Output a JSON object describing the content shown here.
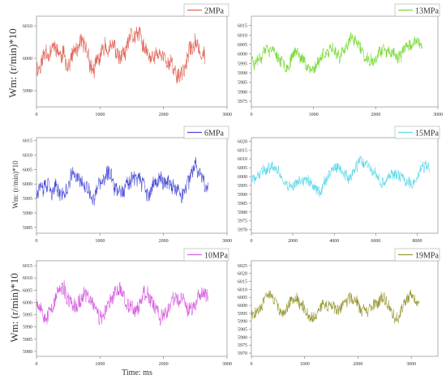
{
  "figure": {
    "ylabel_top": "Wm: (r/min)*10",
    "ylabel_mid": "Wm: (r/min)*10",
    "ylabel_bot": "Wm: (r/min)*10",
    "xlabel": "Time: ms"
  },
  "chart_data": [
    {
      "type": "line",
      "legend": "2MPa",
      "color": "#e06a5c",
      "xlim": [
        0,
        3000
      ],
      "ylim": [
        5985,
        6013
      ],
      "xticks": [
        "0",
        "1000",
        "2000",
        "3000"
      ],
      "yticks": [
        "5990",
        "6000",
        "6010"
      ],
      "ytick_values": [
        5990,
        6000,
        6010
      ],
      "x_end": 2650,
      "base": 6000,
      "amp": 4.5,
      "noise": 2.5,
      "seed": 11
    },
    {
      "type": "line",
      "legend": "13MPa",
      "color": "#7ddb3c",
      "xlim": [
        0,
        3000
      ],
      "ylim": [
        5972,
        6020
      ],
      "xticks": [
        "0",
        "1000",
        "2000",
        "3000"
      ],
      "yticks": [
        "5975",
        "5980",
        "5985",
        "5990",
        "5995",
        "6000",
        "6005",
        "6010",
        "6015"
      ],
      "ytick_values": [
        5975,
        5980,
        5985,
        5990,
        5995,
        6000,
        6005,
        6010,
        6015
      ],
      "x_end": 2750,
      "base": 6000,
      "amp": 6,
      "noise": 3,
      "seed": 23
    },
    {
      "type": "line",
      "legend": "6MPa",
      "color": "#4a4ed6",
      "xlim": [
        0,
        3000
      ],
      "ylim": [
        5983,
        6016
      ],
      "xticks": [
        "0",
        "1000",
        "2000",
        "3000"
      ],
      "yticks": [
        "5985",
        "5990",
        "5995",
        "6000",
        "6005",
        "6010",
        "6015"
      ],
      "ytick_values": [
        5985,
        5990,
        5995,
        6000,
        6005,
        6010,
        6015
      ],
      "x_end": 2700,
      "base": 6000,
      "amp": 5,
      "noise": 2.5,
      "seed": 37
    },
    {
      "type": "line",
      "legend": "15MPa",
      "color": "#5fd8e8",
      "xlim": [
        0,
        9000
      ],
      "ylim": [
        5968,
        6022
      ],
      "xticks": [
        "0",
        "2000",
        "4000",
        "6000",
        "8000"
      ],
      "yticks": [
        "5970",
        "5975",
        "5980",
        "5985",
        "5990",
        "5995",
        "6000",
        "6005",
        "6010",
        "6015",
        "6020"
      ],
      "ytick_values": [
        5970,
        5975,
        5980,
        5985,
        5990,
        5995,
        6000,
        6005,
        6010,
        6015,
        6020
      ],
      "x_end": 8600,
      "base": 6000,
      "amp": 6,
      "noise": 3,
      "seed": 41
    },
    {
      "type": "line",
      "legend": "10MPa",
      "color": "#d85ce0",
      "xlim": [
        0,
        3000
      ],
      "ylim": [
        5978,
        6017
      ],
      "xticks": [
        "0",
        "1000",
        "2000",
        "3000"
      ],
      "yticks": [
        "5980",
        "5985",
        "5990",
        "5995",
        "6000",
        "6005",
        "6010",
        "6015"
      ],
      "ytick_values": [
        5980,
        5985,
        5990,
        5995,
        6000,
        6005,
        6010,
        6015
      ],
      "x_end": 2700,
      "base": 6000,
      "amp": 6,
      "noise": 3,
      "seed": 53
    },
    {
      "type": "line",
      "legend": "19MPa",
      "color": "#9a9a3a",
      "xlim": [
        0,
        3500
      ],
      "ylim": [
        5968,
        6028
      ],
      "xticks": [
        "0",
        "1000",
        "2000",
        "3000"
      ],
      "yticks": [
        "5970",
        "5975",
        "5980",
        "5985",
        "5990",
        "5995",
        "6000",
        "6005",
        "6010",
        "6015",
        "6020",
        "6025"
      ],
      "ytick_values": [
        5970,
        5975,
        5980,
        5985,
        5990,
        5995,
        6000,
        6005,
        6010,
        6015,
        6020,
        6025
      ],
      "x_end": 3150,
      "base": 6000,
      "amp": 7,
      "noise": 3.5,
      "seed": 67
    }
  ]
}
